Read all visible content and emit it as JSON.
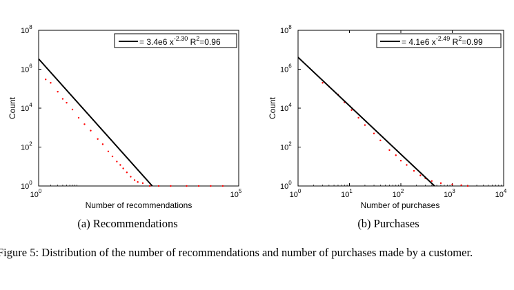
{
  "chart_data": [
    {
      "type": "scatter",
      "subcaption": "(a) Recommendations",
      "xlabel": "Number of recommendations",
      "ylabel": "Count",
      "xscale": "log",
      "yscale": "log",
      "xlim": [
        1,
        100000
      ],
      "ylim": [
        1,
        100000000
      ],
      "xticks": [
        {
          "value": 1,
          "base": "10",
          "exp": "0"
        },
        {
          "value": 100000,
          "base": "10",
          "exp": "5"
        }
      ],
      "yticks": [
        {
          "value": 1,
          "base": "10",
          "exp": "0"
        },
        {
          "value": 100,
          "base": "10",
          "exp": "2"
        },
        {
          "value": 10000,
          "base": "10",
          "exp": "4"
        },
        {
          "value": 1000000,
          "base": "10",
          "exp": "6"
        },
        {
          "value": 100000000,
          "base": "10",
          "exp": "8"
        }
      ],
      "fit": {
        "coef": 3400000,
        "exponent": -2.3,
        "r2": 0.96
      },
      "legend": {
        "prefix": "= 3.4e6 x",
        "exp": "-2.30",
        "r2_prefix": " R",
        "r2_exp": "2",
        "r2_suffix": "=0.96"
      },
      "legend_position": "top-right",
      "series": [
        {
          "color": "#ff0000",
          "points": [
            [
              1.5,
              300000
            ],
            [
              2,
              200000
            ],
            [
              3,
              70000
            ],
            [
              4,
              30000
            ],
            [
              5,
              19000
            ],
            [
              7,
              8500
            ],
            [
              10,
              3200
            ],
            [
              14,
              1500
            ],
            [
              20,
              700
            ],
            [
              30,
              260
            ],
            [
              40,
              140
            ],
            [
              55,
              60
            ],
            [
              70,
              33
            ],
            [
              90,
              18
            ],
            [
              110,
              12
            ],
            [
              130,
              8
            ],
            [
              160,
              5
            ],
            [
              200,
              3
            ],
            [
              250,
              2
            ],
            [
              300,
              1.6
            ],
            [
              400,
              1.4
            ],
            [
              600,
              1
            ],
            [
              1000,
              1
            ],
            [
              2000,
              1
            ],
            [
              5000,
              1
            ],
            [
              10000,
              1
            ],
            [
              20000,
              1
            ],
            [
              40000,
              1
            ]
          ]
        }
      ]
    },
    {
      "type": "scatter",
      "subcaption": "(b) Purchases",
      "xlabel": "Number of purchases",
      "ylabel": "Count",
      "xscale": "log",
      "yscale": "log",
      "xlim": [
        1,
        10000
      ],
      "ylim": [
        1,
        100000000
      ],
      "xticks": [
        {
          "value": 1,
          "base": "10",
          "exp": "0"
        },
        {
          "value": 10,
          "base": "10",
          "exp": "1"
        },
        {
          "value": 100,
          "base": "10",
          "exp": "2"
        },
        {
          "value": 1000,
          "base": "10",
          "exp": "3"
        },
        {
          "value": 10000,
          "base": "10",
          "exp": "4"
        }
      ],
      "yticks": [
        {
          "value": 1,
          "base": "10",
          "exp": "0"
        },
        {
          "value": 100,
          "base": "10",
          "exp": "2"
        },
        {
          "value": 10000,
          "base": "10",
          "exp": "4"
        },
        {
          "value": 1000000,
          "base": "10",
          "exp": "6"
        },
        {
          "value": 100000000,
          "base": "10",
          "exp": "8"
        }
      ],
      "fit": {
        "coef": 4100000,
        "exponent": -2.49,
        "r2": 0.99
      },
      "legend": {
        "prefix": "= 4.1e6 x",
        "exp": "-2.49",
        "r2_prefix": " R",
        "r2_exp": "2",
        "r2_suffix": "=0.99"
      },
      "legend_position": "top-right",
      "series": [
        {
          "color": "#ff0000",
          "points": [
            [
              3,
              200000
            ],
            [
              4,
              130000
            ],
            [
              6,
              50000
            ],
            [
              8,
              20000
            ],
            [
              11,
              8000
            ],
            [
              15,
              3200
            ],
            [
              20,
              1350
            ],
            [
              30,
              500
            ],
            [
              40,
              220
            ],
            [
              60,
              70
            ],
            [
              80,
              38
            ],
            [
              100,
              20
            ],
            [
              130,
              12
            ],
            [
              180,
              6
            ],
            [
              240,
              3.5
            ],
            [
              300,
              2.5
            ],
            [
              400,
              1.8
            ],
            [
              600,
              1.4
            ],
            [
              1000,
              1.2
            ],
            [
              1500,
              1.1
            ],
            [
              2000,
              1
            ]
          ]
        }
      ]
    }
  ],
  "figure_caption": "Figure 5: Distribution of the number of recommendations and number of purchases made by a customer."
}
